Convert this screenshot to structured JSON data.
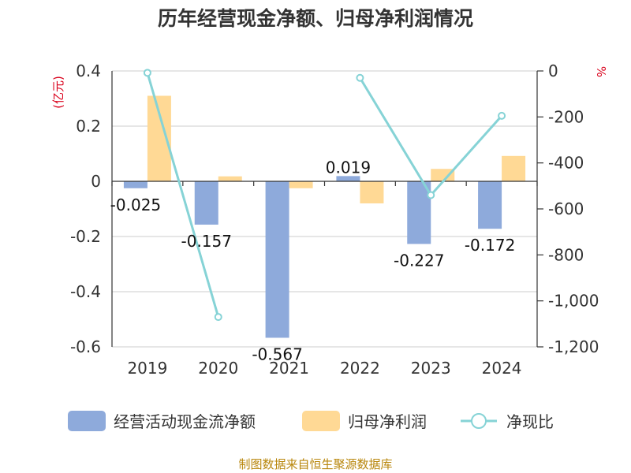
{
  "chart_data": {
    "type": "bar+line",
    "title": "历年经营现金净额、归母净利润情况",
    "categories": [
      "2019",
      "2020",
      "2021",
      "2022",
      "2023",
      "2024"
    ],
    "left_axis": {
      "unit_label": "(亿元)",
      "ylim": [
        -0.6,
        0.4
      ],
      "ticks": [
        "0.4",
        "0.2",
        "0",
        "-0.2",
        "-0.4",
        "-0.6"
      ],
      "tick_values": [
        0.4,
        0.2,
        0,
        -0.2,
        -0.4,
        -0.6
      ]
    },
    "right_axis": {
      "unit_label": "%",
      "ylim": [
        -1200,
        0
      ],
      "ticks": [
        "0",
        "-200",
        "-400",
        "-600",
        "-800",
        "-1,000",
        "-1,200"
      ],
      "tick_values": [
        0,
        -200,
        -400,
        -600,
        -800,
        -1000,
        -1200
      ]
    },
    "series": [
      {
        "name": "经营活动现金流净额",
        "kind": "bar",
        "axis": "left",
        "color": "#8eaadb",
        "values": [
          -0.025,
          -0.157,
          -0.567,
          0.019,
          -0.227,
          -0.172
        ],
        "labels": [
          "-0.025",
          "-0.157",
          "-0.567",
          "0.019",
          "-0.227",
          "-0.172"
        ]
      },
      {
        "name": "归母净利润",
        "kind": "bar",
        "axis": "left",
        "color": "#ffd995",
        "values": [
          0.31,
          0.018,
          -0.025,
          -0.08,
          0.045,
          0.092
        ]
      },
      {
        "name": "净现比",
        "kind": "line",
        "axis": "right",
        "color": "#86d3d6",
        "values": [
          -8,
          -1070,
          null,
          -30,
          -540,
          -195
        ]
      }
    ],
    "legend_position": "bottom"
  },
  "source_text": "制图数据来自恒生聚源数据库"
}
